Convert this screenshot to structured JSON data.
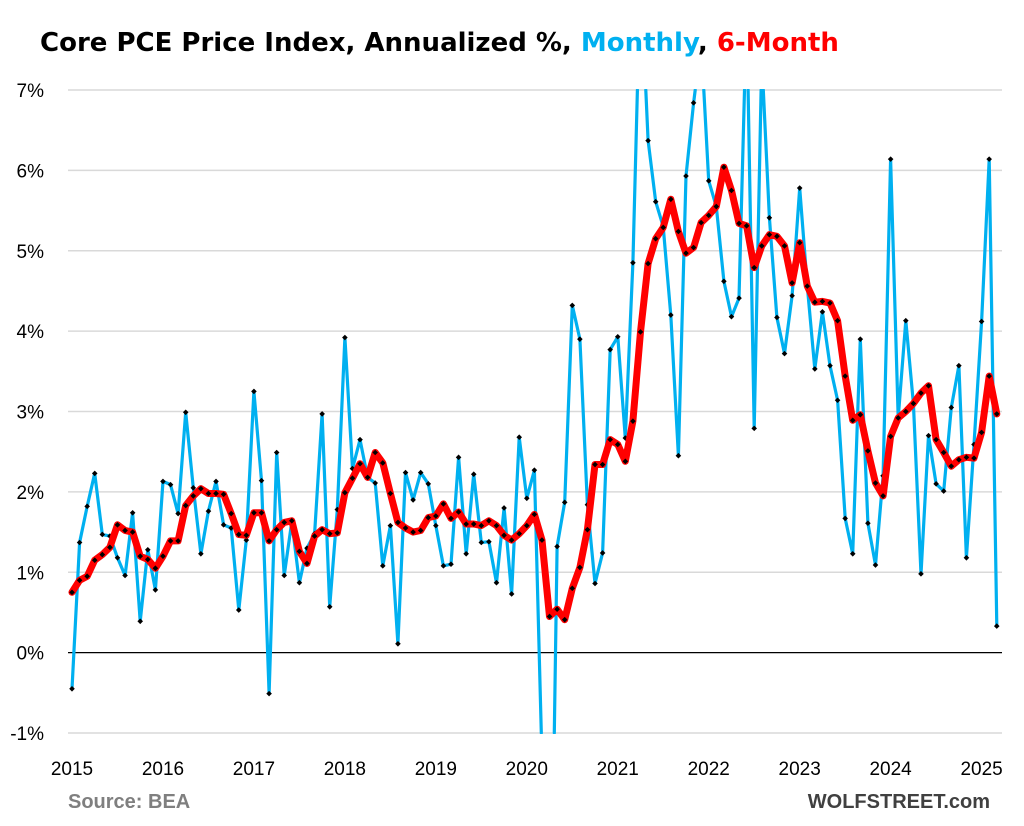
{
  "chart_data": {
    "type": "line",
    "title": {
      "prefix": "Core PCE Price Index, Annualized %, ",
      "monthly": "Monthly",
      "sep": ", ",
      "six_month": "6-Month"
    },
    "x_start": "2015-01",
    "x_frequency": "monthly",
    "x_ticks": [
      "2015",
      "2016",
      "2017",
      "2018",
      "2019",
      "2020",
      "2021",
      "2022",
      "2023",
      "2024",
      "2025"
    ],
    "y_ticks": [
      "-1%",
      "0%",
      "1%",
      "2%",
      "3%",
      "4%",
      "5%",
      "6%",
      "7%"
    ],
    "ylim": [
      -1,
      7
    ],
    "y_unit": "%",
    "grid": true,
    "zero_line": true,
    "series": [
      {
        "name": "Monthly",
        "color": "#00B0F0",
        "values": [
          -0.45,
          1.37,
          1.82,
          2.23,
          1.47,
          1.45,
          1.18,
          0.96,
          1.74,
          0.39,
          1.28,
          0.78,
          2.13,
          2.09,
          1.73,
          2.99,
          2.05,
          1.23,
          1.76,
          2.13,
          1.59,
          1.55,
          0.53,
          1.4,
          3.25,
          2.14,
          -0.51,
          2.49,
          0.96,
          1.63,
          0.87,
          1.3,
          1.48,
          2.97,
          0.57,
          1.78,
          3.92,
          2.29,
          2.65,
          2.18,
          2.11,
          1.08,
          1.58,
          0.11,
          2.24,
          1.9,
          2.24,
          2.1,
          1.58,
          1.08,
          1.1,
          2.43,
          1.23,
          2.22,
          1.37,
          1.38,
          0.87,
          1.8,
          0.73,
          2.68,
          1.92,
          2.27,
          -1.3,
          -5.0,
          1.32,
          1.87,
          4.32,
          3.9,
          1.84,
          0.86,
          1.24,
          3.77,
          3.93,
          2.67,
          4.85,
          8.5,
          6.37,
          5.61,
          5.3,
          4.2,
          2.45,
          5.93,
          6.84,
          7.6,
          5.87,
          5.55,
          4.62,
          4.18,
          4.41,
          8.0,
          2.79,
          7.4,
          5.41,
          4.17,
          3.72,
          4.44,
          5.78,
          4.56,
          3.53,
          4.24,
          3.57,
          3.14,
          1.67,
          1.23,
          3.9,
          1.61,
          1.09,
          2.2,
          6.14,
          2.92,
          4.13,
          3.1,
          0.98,
          2.7,
          2.1,
          2.01,
          3.05,
          3.57,
          1.18,
          2.59,
          4.12,
          6.14,
          0.33
        ]
      },
      {
        "name": "6-Month",
        "color": "#FF0000",
        "values": [
          0.75,
          0.9,
          0.95,
          1.15,
          1.22,
          1.31,
          1.59,
          1.52,
          1.5,
          1.2,
          1.16,
          1.05,
          1.2,
          1.39,
          1.39,
          1.83,
          1.95,
          2.04,
          1.98,
          1.98,
          1.97,
          1.73,
          1.47,
          1.46,
          1.74,
          1.74,
          1.39,
          1.53,
          1.62,
          1.64,
          1.26,
          1.11,
          1.45,
          1.53,
          1.48,
          1.49,
          1.99,
          2.17,
          2.35,
          2.18,
          2.49,
          2.36,
          1.98,
          1.62,
          1.55,
          1.5,
          1.52,
          1.68,
          1.7,
          1.85,
          1.67,
          1.75,
          1.6,
          1.6,
          1.58,
          1.64,
          1.58,
          1.46,
          1.4,
          1.48,
          1.58,
          1.72,
          1.4,
          0.45,
          0.54,
          0.41,
          0.8,
          1.06,
          1.53,
          2.34,
          2.34,
          2.65,
          2.59,
          2.38,
          2.88,
          3.99,
          4.84,
          5.15,
          5.29,
          5.64,
          5.24,
          4.97,
          5.04,
          5.35,
          5.44,
          5.55,
          6.04,
          5.75,
          5.34,
          5.31,
          4.79,
          5.06,
          5.2,
          5.18,
          5.06,
          4.6,
          5.1,
          4.56,
          4.36,
          4.37,
          4.35,
          4.13,
          3.44,
          2.89,
          2.96,
          2.51,
          2.11,
          1.95,
          2.69,
          2.92,
          3.0,
          3.1,
          3.23,
          3.32,
          2.65,
          2.49,
          2.32,
          2.4,
          2.43,
          2.42,
          2.74,
          3.44,
          2.97
        ]
      }
    ],
    "marker": "diamond",
    "marker_color": "#000000",
    "grid_color": "#D9D9D9"
  },
  "footer": {
    "source": "Source: BEA",
    "brand": "WOLFSTREET.com"
  }
}
